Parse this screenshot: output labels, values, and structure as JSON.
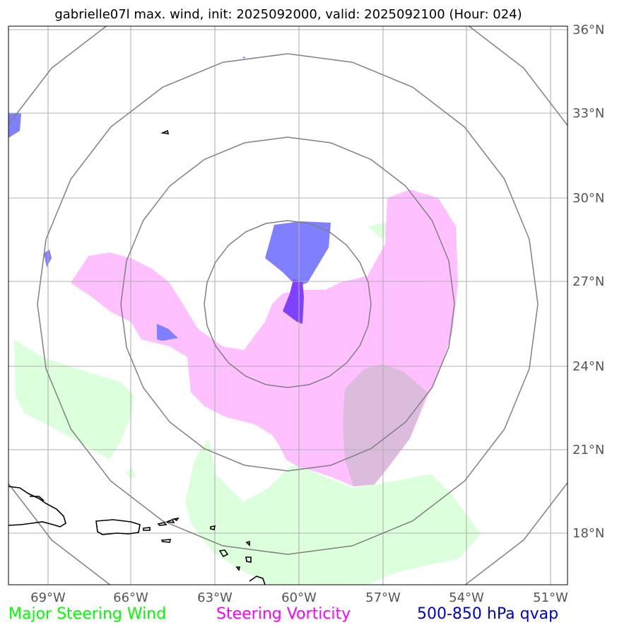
{
  "title": "gabrielle07l max. wind, init: 2025092000, valid: 2025092100 (Hour: 024)",
  "storm": "gabrielle07l",
  "init": "2025092000",
  "valid": "2025092100",
  "forecast_hour": "024",
  "lon_ticks": [
    "69°W",
    "66°W",
    "63°W",
    "60°W",
    "57°W",
    "54°W",
    "51°W"
  ],
  "lat_ticks": [
    "36°N",
    "33°N",
    "30°N",
    "27°N",
    "24°N",
    "21°N",
    "18°N"
  ],
  "legend": [
    {
      "label": "Major Steering Wind",
      "color": "#00ff00"
    },
    {
      "label": "Steering Vorticity",
      "color": "#ff00ff"
    },
    {
      "label": "500-850 hPa qvap",
      "color": "#0000cc"
    }
  ],
  "colors": {
    "steering_wind_fill": "#dcffdc",
    "vorticity_fill": "#ffc0ff",
    "qvap_fill": "#7f7fff",
    "overlap_fill": "#dcbcdc",
    "qvap_vorticity_overlap": "#8040ff",
    "range_rings": "#808080",
    "grid": "#b0b0b0",
    "coastline": "#000000"
  },
  "range_ring_count": 4
}
